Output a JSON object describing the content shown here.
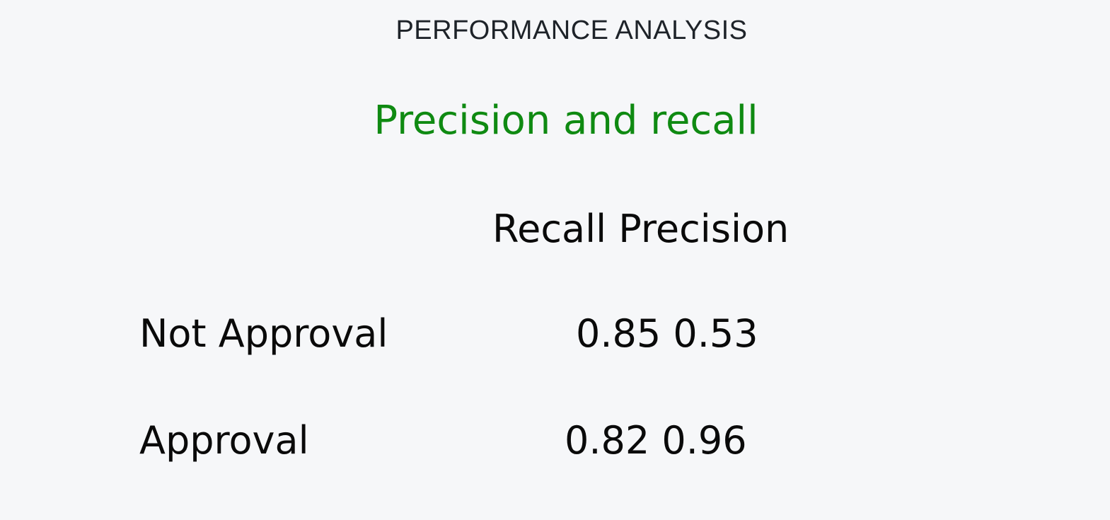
{
  "section": {
    "header": "PERFORMANCE ANALYSIS"
  },
  "card": {
    "title": "Precision and recall",
    "header_text": "Recall Precision",
    "rows": [
      {
        "label": "Not Approval",
        "values": "0.85 0.53"
      },
      {
        "label": "Approval",
        "values": "0.82 0.96"
      }
    ]
  },
  "colors": {
    "background": "#f6f7f9",
    "title_green": "#0f8a12",
    "text": "#0a0a0a"
  }
}
